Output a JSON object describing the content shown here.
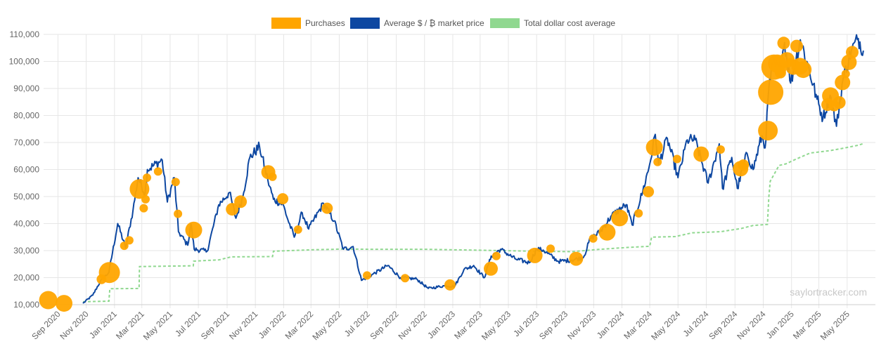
{
  "watermark": "saylortracker.com",
  "legend": {
    "purchases": "Purchases",
    "market_price": "Average $ / ₿ market price",
    "cost_average": "Total dollar cost average"
  },
  "colors": {
    "purchases": "#FFA500",
    "market_price": "#0D47A1",
    "cost_average": "#90D890",
    "grid": "#e6e6e6"
  },
  "chart_data": {
    "type": "line",
    "title": "",
    "xlabel": "",
    "ylabel": "",
    "ylim": [
      10000,
      110000
    ],
    "xlim": [
      "2020-08-01",
      "2025-07-01"
    ],
    "y_ticks": [
      "10,000",
      "20,000",
      "30,000",
      "40,000",
      "50,000",
      "60,000",
      "70,000",
      "80,000",
      "90,000",
      "100,000",
      "110,000"
    ],
    "x_ticks": [
      {
        "date": "2020-09-01",
        "label": "Sep 2020"
      },
      {
        "date": "2020-11-01",
        "label": "Nov 2020"
      },
      {
        "date": "2021-01-01",
        "label": "Jan 2021"
      },
      {
        "date": "2021-03-01",
        "label": "Mar 2021"
      },
      {
        "date": "2021-05-01",
        "label": "May 2021"
      },
      {
        "date": "2021-07-01",
        "label": "Jul 2021"
      },
      {
        "date": "2021-09-01",
        "label": "Sep 2021"
      },
      {
        "date": "2021-11-01",
        "label": "Nov 2021"
      },
      {
        "date": "2022-01-01",
        "label": "Jan 2022"
      },
      {
        "date": "2022-03-01",
        "label": "Mar 2022"
      },
      {
        "date": "2022-05-01",
        "label": "May 2022"
      },
      {
        "date": "2022-07-01",
        "label": "Jul 2022"
      },
      {
        "date": "2022-09-01",
        "label": "Sep 2022"
      },
      {
        "date": "2022-11-01",
        "label": "Nov 2022"
      },
      {
        "date": "2023-01-01",
        "label": "Jan 2023"
      },
      {
        "date": "2023-03-01",
        "label": "Mar 2023"
      },
      {
        "date": "2023-05-01",
        "label": "May 2023"
      },
      {
        "date": "2023-07-01",
        "label": "Jul 2023"
      },
      {
        "date": "2023-09-01",
        "label": "Sep 2023"
      },
      {
        "date": "2023-11-01",
        "label": "Nov 2023"
      },
      {
        "date": "2024-01-01",
        "label": "Jan 2024"
      },
      {
        "date": "2024-03-01",
        "label": "Mar 2024"
      },
      {
        "date": "2024-05-01",
        "label": "May 2024"
      },
      {
        "date": "2024-07-01",
        "label": "Jul 2024"
      },
      {
        "date": "2024-09-01",
        "label": "Sep 2024"
      },
      {
        "date": "2024-11-01",
        "label": "Nov 2024"
      },
      {
        "date": "2025-01-01",
        "label": "Jan 2025"
      },
      {
        "date": "2025-03-01",
        "label": "Mar 2025"
      },
      {
        "date": "2025-05-01",
        "label": "May 2025"
      }
    ],
    "grid": true,
    "legend_position": "top-center",
    "series": [
      {
        "name": "Average $ / ₿ market price",
        "kind": "line",
        "points": [
          [
            "2020-10-25",
            10500
          ],
          [
            "2020-11-15",
            13500
          ],
          [
            "2020-12-01",
            18500
          ],
          [
            "2020-12-20",
            22000
          ],
          [
            "2021-01-08",
            40000
          ],
          [
            "2021-01-25",
            31000
          ],
          [
            "2021-02-10",
            45000
          ],
          [
            "2021-02-21",
            57000
          ],
          [
            "2021-03-08",
            51000
          ],
          [
            "2021-03-13",
            60000
          ],
          [
            "2021-04-14",
            63500
          ],
          [
            "2021-04-25",
            48000
          ],
          [
            "2021-05-10",
            57000
          ],
          [
            "2021-05-19",
            37000
          ],
          [
            "2021-06-08",
            32000
          ],
          [
            "2021-06-15",
            40000
          ],
          [
            "2021-06-22",
            30500
          ],
          [
            "2021-07-20",
            29800
          ],
          [
            "2021-08-14",
            47000
          ],
          [
            "2021-09-06",
            51500
          ],
          [
            "2021-09-20",
            42000
          ],
          [
            "2021-10-05",
            50000
          ],
          [
            "2021-10-20",
            64500
          ],
          [
            "2021-11-10",
            68500
          ],
          [
            "2021-11-28",
            56000
          ],
          [
            "2021-12-10",
            49000
          ],
          [
            "2021-12-31",
            47000
          ],
          [
            "2022-01-10",
            41500
          ],
          [
            "2022-01-24",
            35000
          ],
          [
            "2022-02-10",
            44000
          ],
          [
            "2022-02-24",
            38000
          ],
          [
            "2022-03-28",
            47500
          ],
          [
            "2022-04-20",
            41000
          ],
          [
            "2022-05-10",
            30500
          ],
          [
            "2022-05-31",
            31500
          ],
          [
            "2022-06-18",
            19000
          ],
          [
            "2022-07-10",
            21000
          ],
          [
            "2022-08-14",
            24500
          ],
          [
            "2022-09-10",
            20000
          ],
          [
            "2022-10-15",
            19500
          ],
          [
            "2022-11-09",
            16000
          ],
          [
            "2022-12-15",
            17000
          ],
          [
            "2023-01-05",
            16800
          ],
          [
            "2023-01-25",
            23000
          ],
          [
            "2023-02-15",
            24500
          ],
          [
            "2023-03-10",
            20000
          ],
          [
            "2023-03-25",
            28000
          ],
          [
            "2023-04-14",
            30500
          ],
          [
            "2023-05-15",
            27000
          ],
          [
            "2023-06-15",
            25500
          ],
          [
            "2023-07-01",
            30500
          ],
          [
            "2023-07-15",
            30200
          ],
          [
            "2023-08-17",
            26000
          ],
          [
            "2023-09-15",
            26500
          ],
          [
            "2023-10-10",
            27500
          ],
          [
            "2023-10-25",
            34500
          ],
          [
            "2023-11-15",
            37000
          ],
          [
            "2023-12-10",
            43000
          ],
          [
            "2024-01-10",
            47000
          ],
          [
            "2024-01-23",
            39500
          ],
          [
            "2024-02-15",
            52000
          ],
          [
            "2024-03-01",
            62000
          ],
          [
            "2024-03-13",
            73000
          ],
          [
            "2024-03-20",
            62000
          ],
          [
            "2024-04-08",
            71500
          ],
          [
            "2024-05-01",
            57000
          ],
          [
            "2024-05-21",
            71000
          ],
          [
            "2024-06-07",
            71000
          ],
          [
            "2024-07-05",
            55000
          ],
          [
            "2024-07-29",
            69500
          ],
          [
            "2024-08-05",
            53000
          ],
          [
            "2024-08-25",
            64500
          ],
          [
            "2024-09-06",
            53000
          ],
          [
            "2024-09-27",
            66000
          ],
          [
            "2024-10-10",
            60000
          ],
          [
            "2024-10-29",
            72500
          ],
          [
            "2024-11-05",
            68000
          ],
          [
            "2024-11-13",
            90000
          ],
          [
            "2024-11-22",
            99000
          ],
          [
            "2024-12-05",
            97000
          ],
          [
            "2024-12-17",
            107000
          ],
          [
            "2024-12-30",
            92000
          ],
          [
            "2025-01-20",
            108000
          ],
          [
            "2025-02-03",
            100000
          ],
          [
            "2025-02-25",
            86000
          ],
          [
            "2025-03-10",
            79000
          ],
          [
            "2025-03-25",
            87500
          ],
          [
            "2025-04-08",
            76000
          ],
          [
            "2025-04-22",
            93500
          ],
          [
            "2025-05-10",
            104000
          ],
          [
            "2025-05-25",
            108500
          ],
          [
            "2025-06-05",
            104000
          ]
        ]
      },
      {
        "name": "Total dollar cost average",
        "kind": "step",
        "points": [
          [
            "2020-10-25",
            11100
          ],
          [
            "2020-12-20",
            11300
          ],
          [
            "2020-12-22",
            15900
          ],
          [
            "2021-02-23",
            16000
          ],
          [
            "2021-02-24",
            24100
          ],
          [
            "2021-06-20",
            24400
          ],
          [
            "2021-06-21",
            26100
          ],
          [
            "2021-08-15",
            26600
          ],
          [
            "2021-09-10",
            27700
          ],
          [
            "2021-12-08",
            27800
          ],
          [
            "2021-12-10",
            29800
          ],
          [
            "2022-03-05",
            30300
          ],
          [
            "2022-05-15",
            30600
          ],
          [
            "2022-07-01",
            30500
          ],
          [
            "2022-11-01",
            30500
          ],
          [
            "2023-03-15",
            30100
          ],
          [
            "2023-06-25",
            29800
          ],
          [
            "2023-09-15",
            29600
          ],
          [
            "2023-11-15",
            30500
          ],
          [
            "2024-01-15",
            31200
          ],
          [
            "2024-03-01",
            31600
          ],
          [
            "2024-03-05",
            35000
          ],
          [
            "2024-04-25",
            35200
          ],
          [
            "2024-06-01",
            36600
          ],
          [
            "2024-08-01",
            37000
          ],
          [
            "2024-09-15",
            38200
          ],
          [
            "2024-10-10",
            39300
          ],
          [
            "2024-11-10",
            39700
          ],
          [
            "2024-11-13",
            49800
          ],
          [
            "2024-11-16",
            55700
          ],
          [
            "2024-12-05",
            61500
          ],
          [
            "2024-12-20",
            62100
          ],
          [
            "2025-01-10",
            63800
          ],
          [
            "2025-02-10",
            66100
          ],
          [
            "2025-03-25",
            67000
          ],
          [
            "2025-04-20",
            67800
          ],
          [
            "2025-05-25",
            69000
          ],
          [
            "2025-06-05",
            69600
          ]
        ]
      },
      {
        "name": "Purchases",
        "kind": "bubble",
        "points": [
          {
            "x": "2020-08-11",
            "y": 11700,
            "r": 13
          },
          {
            "x": "2020-09-14",
            "y": 10500,
            "r": 12
          },
          {
            "x": "2020-12-04",
            "y": 19400,
            "r": 7
          },
          {
            "x": "2020-12-21",
            "y": 21900,
            "r": 15
          },
          {
            "x": "2021-01-22",
            "y": 31800,
            "r": 6
          },
          {
            "x": "2021-02-02",
            "y": 33800,
            "r": 6
          },
          {
            "x": "2021-02-24",
            "y": 52800,
            "r": 14
          },
          {
            "x": "2021-03-05",
            "y": 45700,
            "r": 6
          },
          {
            "x": "2021-03-09",
            "y": 49000,
            "r": 6
          },
          {
            "x": "2021-03-12",
            "y": 57000,
            "r": 6
          },
          {
            "x": "2021-04-05",
            "y": 59300,
            "r": 6
          },
          {
            "x": "2021-05-13",
            "y": 55400,
            "r": 6
          },
          {
            "x": "2021-05-18",
            "y": 43600,
            "r": 6
          },
          {
            "x": "2021-06-21",
            "y": 37600,
            "r": 12
          },
          {
            "x": "2021-09-12",
            "y": 45300,
            "r": 9
          },
          {
            "x": "2021-09-30",
            "y": 48100,
            "r": 9
          },
          {
            "x": "2021-11-29",
            "y": 59000,
            "r": 10
          },
          {
            "x": "2021-12-08",
            "y": 57300,
            "r": 6
          },
          {
            "x": "2021-12-30",
            "y": 49200,
            "r": 8
          },
          {
            "x": "2022-02-01",
            "y": 37800,
            "r": 6
          },
          {
            "x": "2022-04-05",
            "y": 45700,
            "r": 8
          },
          {
            "x": "2022-06-30",
            "y": 20800,
            "r": 6
          },
          {
            "x": "2022-09-20",
            "y": 19800,
            "r": 6
          },
          {
            "x": "2022-12-26",
            "y": 17300,
            "r": 8
          },
          {
            "x": "2023-03-24",
            "y": 23300,
            "r": 10
          },
          {
            "x": "2023-04-05",
            "y": 28000,
            "r": 6
          },
          {
            "x": "2023-06-27",
            "y": 28200,
            "r": 11
          },
          {
            "x": "2023-07-31",
            "y": 30700,
            "r": 6
          },
          {
            "x": "2023-09-24",
            "y": 27000,
            "r": 10
          },
          {
            "x": "2023-10-31",
            "y": 34500,
            "r": 6
          },
          {
            "x": "2023-11-30",
            "y": 36800,
            "r": 12
          },
          {
            "x": "2023-12-27",
            "y": 42100,
            "r": 12
          },
          {
            "x": "2024-02-06",
            "y": 43800,
            "r": 6
          },
          {
            "x": "2024-02-27",
            "y": 51800,
            "r": 8
          },
          {
            "x": "2024-03-11",
            "y": 68200,
            "r": 12
          },
          {
            "x": "2024-03-18",
            "y": 62800,
            "r": 6
          },
          {
            "x": "2024-04-29",
            "y": 63900,
            "r": 6
          },
          {
            "x": "2024-06-20",
            "y": 65700,
            "r": 11
          },
          {
            "x": "2024-08-01",
            "y": 67400,
            "r": 6
          },
          {
            "x": "2024-09-13",
            "y": 60300,
            "r": 11
          },
          {
            "x": "2024-09-19",
            "y": 61700,
            "r": 8
          },
          {
            "x": "2024-11-11",
            "y": 74400,
            "r": 14
          },
          {
            "x": "2024-11-17",
            "y": 88600,
            "r": 18
          },
          {
            "x": "2024-11-24",
            "y": 97900,
            "r": 18
          },
          {
            "x": "2024-12-01",
            "y": 99200,
            "r": 13
          },
          {
            "x": "2024-12-08",
            "y": 95800,
            "r": 8
          },
          {
            "x": "2024-12-15",
            "y": 106800,
            "r": 9
          },
          {
            "x": "2024-12-22",
            "y": 100600,
            "r": 11
          },
          {
            "x": "2024-12-29",
            "y": 99700,
            "r": 6
          },
          {
            "x": "2025-01-05",
            "y": 97900,
            "r": 11
          },
          {
            "x": "2025-01-12",
            "y": 105700,
            "r": 9
          },
          {
            "x": "2025-01-19",
            "y": 98200,
            "r": 12
          },
          {
            "x": "2025-01-26",
            "y": 97000,
            "r": 12
          },
          {
            "x": "2025-03-20",
            "y": 84000,
            "r": 9
          },
          {
            "x": "2025-03-26",
            "y": 87300,
            "r": 12
          },
          {
            "x": "2025-04-03",
            "y": 83600,
            "r": 8
          },
          {
            "x": "2025-04-14",
            "y": 84800,
            "r": 9
          },
          {
            "x": "2025-04-21",
            "y": 92200,
            "r": 11
          },
          {
            "x": "2025-04-28",
            "y": 95400,
            "r": 6
          },
          {
            "x": "2025-05-05",
            "y": 99700,
            "r": 11
          },
          {
            "x": "2025-05-12",
            "y": 103400,
            "r": 9
          }
        ]
      }
    ]
  }
}
